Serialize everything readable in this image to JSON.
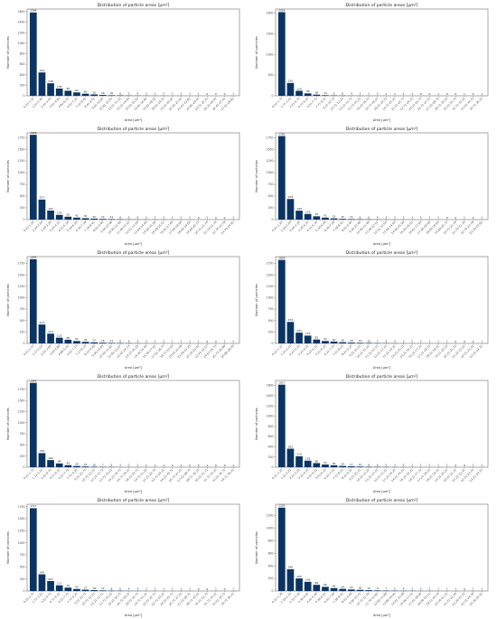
{
  "colors": {
    "bar": "#0b3463",
    "frame": "#555555",
    "text": "#222222"
  },
  "chart_data": [
    {
      "type": "bar",
      "title": "Distribution of particle areas [μm²]",
      "xlabel": "Area [μm²]",
      "ylabel": "Number of particles",
      "ylim": [
        0,
        1650
      ],
      "yticks": [
        0,
        200,
        400,
        600,
        800,
        1000,
        1200,
        1400,
        1600
      ],
      "categories": [
        "0.21-1.21",
        "1.21-2.41",
        "2.41-3.61",
        "3.61-4.81",
        "4.81-6.01",
        "6.01-7.21",
        "7.21-8.41",
        "8.41-9.61",
        "9.61-10.81",
        "10.81-12.01",
        "12.01-13.21",
        "13.21-14.41",
        "14.41-15.61",
        "15.61-16.81",
        "16.81-18.01",
        "18.01-19.21",
        "19.21-20.41",
        "20.41-21.61",
        "21.61-22.81",
        "22.81-24.01",
        "24.01-25.21",
        "25.21-26.41",
        "26.41-27.61",
        "27.61-28.81"
      ],
      "values": [
        1584,
        444,
        238,
        138,
        96,
        64,
        40,
        26,
        16,
        10,
        8,
        5,
        4,
        3,
        2,
        2,
        1,
        1,
        1,
        1,
        0,
        0,
        0,
        1
      ],
      "data_labels": [
        "1584",
        "444",
        "238",
        "138",
        "96",
        "64",
        "40",
        "26",
        "16",
        "10",
        "8",
        "5",
        "4",
        "3",
        "2",
        "2",
        "1",
        "1",
        "1",
        "1",
        "0",
        "0",
        "0",
        "1"
      ]
    },
    {
      "type": "bar",
      "title": "Distribution of particle areas [μm²]",
      "xlabel": "Area [μm²]",
      "ylabel": "Number of particles",
      "ylim": [
        0,
        2100
      ],
      "yticks": [
        0,
        500,
        1000,
        1500,
        2000
      ],
      "categories": [
        "0.21-1.71",
        "1.71-3.21",
        "3.21-4.71",
        "4.71-6.21",
        "6.21-7.71",
        "7.71-9.21",
        "9.21-10.71",
        "10.71-12.21",
        "12.21-13.71",
        "13.71-15.21",
        "15.21-16.71",
        "16.71-18.21",
        "18.21-19.71",
        "19.71-21.21",
        "21.21-22.71",
        "22.71-24.21",
        "24.21-25.71",
        "25.71-27.21",
        "27.21-28.71",
        "28.71-30.21",
        "30.21-31.71",
        "31.71-33.21",
        "33.21-34.71",
        "34.71-36.21"
      ],
      "values": [
        2024,
        310,
        120,
        58,
        28,
        14,
        9,
        6,
        4,
        3,
        2,
        2,
        1,
        1,
        1,
        1,
        0,
        0,
        1,
        0,
        0,
        1,
        0,
        1
      ],
      "data_labels": [
        "2024",
        "310",
        "120",
        "58",
        "28",
        "14",
        "9",
        "6",
        "4",
        "3",
        "2",
        "2",
        "1",
        "1",
        "1",
        "1",
        "0",
        "0",
        "1",
        "0",
        "0",
        "1",
        "0",
        "1"
      ]
    },
    {
      "type": "bar",
      "title": "Distribution of particle areas [μm²]",
      "xlabel": "Area [μm²]",
      "ylabel": "Number of particles",
      "ylim": [
        0,
        1850
      ],
      "yticks": [
        0,
        250,
        500,
        750,
        1000,
        1250,
        1500,
        1750
      ],
      "categories": [
        "0.21-1.24",
        "1.24-2.26",
        "2.26-3.29",
        "3.29-4.31",
        "4.31-5.34",
        "5.34-6.36",
        "6.36-7.39",
        "7.39-8.41",
        "8.41-9.44",
        "9.44-10.46",
        "10.46-11.49",
        "11.49-12.51",
        "12.51-13.54",
        "13.54-14.56",
        "14.56-15.59",
        "15.59-16.61",
        "16.61-17.64",
        "17.64-18.66",
        "18.66-19.69",
        "19.69-20.71",
        "20.71-21.74",
        "21.74-22.76",
        "22.76-23.79",
        "23.79-24.81"
      ],
      "values": [
        1808,
        427,
        192,
        100,
        62,
        42,
        30,
        20,
        14,
        11,
        8,
        5,
        4,
        3,
        2,
        2,
        1,
        1,
        1,
        0,
        1,
        0,
        0,
        1
      ],
      "data_labels": [
        "1808",
        "427",
        "192",
        "100",
        "62",
        "42",
        "30",
        "20",
        "14",
        "11",
        "8",
        "5",
        "4",
        "3",
        "2",
        "2",
        "1",
        "1",
        "1",
        "0",
        "1",
        "0",
        "0",
        "1"
      ]
    },
    {
      "type": "bar",
      "title": "Distribution of particle areas [μm²]",
      "xlabel": "Area [μm²]",
      "ylabel": "Number of particles",
      "ylim": [
        0,
        1850
      ],
      "yticks": [
        0,
        250,
        500,
        750,
        1000,
        1250,
        1500,
        1750
      ],
      "categories": [
        "0.21-1.24",
        "1.24-2.26",
        "2.26-3.29",
        "3.29-4.31",
        "4.31-5.34",
        "5.34-6.36",
        "6.36-7.39",
        "7.39-8.41",
        "8.41-9.44",
        "9.44-10.46",
        "10.46-11.49",
        "11.49-12.51",
        "12.51-13.54",
        "13.54-14.56",
        "14.56-15.59",
        "15.59-16.61",
        "16.61-17.64",
        "17.64-18.66",
        "18.66-19.69",
        "19.69-20.71",
        "20.71-21.74",
        "21.74-22.76",
        "22.76-23.79",
        "23.79-24.81"
      ],
      "values": [
        1781,
        439,
        190,
        120,
        70,
        42,
        25,
        15,
        11,
        8,
        6,
        4,
        3,
        2,
        2,
        1,
        1,
        1,
        1,
        0,
        0,
        1,
        0,
        1
      ],
      "data_labels": [
        "1781",
        "439",
        "190",
        "120",
        "70",
        "42",
        "25",
        "15",
        "11",
        "8",
        "6",
        "4",
        "3",
        "2",
        "2",
        "1",
        "1",
        "1",
        "1",
        "0",
        "0",
        "1",
        "0",
        "1"
      ]
    },
    {
      "type": "bar",
      "title": "Distribution of particle areas [μm²]",
      "xlabel": "Area [μm²]",
      "ylabel": "Number of particles",
      "ylim": [
        0,
        1900
      ],
      "yticks": [
        0,
        250,
        500,
        750,
        1000,
        1250,
        1500,
        1750
      ],
      "categories": [
        "0.21-1.37",
        "1.37-2.53",
        "2.53-3.69",
        "3.69-4.85",
        "4.85-6.01",
        "6.01-7.17",
        "7.17-8.33",
        "8.33-9.49",
        "9.49-10.65",
        "10.65-11.81",
        "11.81-12.97",
        "12.97-14.13",
        "14.13-15.29",
        "15.29-16.45",
        "16.45-17.61",
        "17.61-18.77",
        "18.77-19.93",
        "19.93-21.09",
        "21.09-22.25",
        "22.25-23.41",
        "23.41-24.57",
        "24.57-25.73",
        "25.73-26.89",
        "26.89-28.05"
      ],
      "values": [
        1844,
        413,
        213,
        125,
        80,
        52,
        34,
        22,
        16,
        11,
        8,
        6,
        4,
        3,
        2,
        2,
        1,
        1,
        1,
        1,
        0,
        0,
        1,
        1
      ],
      "data_labels": [
        "1844",
        "413",
        "213",
        "125",
        "80",
        "52",
        "34",
        "22",
        "16",
        "11",
        "8",
        "6",
        "4",
        "3",
        "2",
        "2",
        "1",
        "1",
        "1",
        "1",
        "0",
        "0",
        "1",
        "1"
      ]
    },
    {
      "type": "bar",
      "title": "Distribution of particle areas [μm²]",
      "xlabel": "Area [μm²]",
      "ylabel": "Number of particles",
      "ylim": [
        0,
        1900
      ],
      "yticks": [
        0,
        250,
        500,
        750,
        1000,
        1250,
        1500,
        1750
      ],
      "categories": [
        "0.21-1.21",
        "1.21-2.21",
        "2.21-3.21",
        "3.21-4.21",
        "4.21-5.21",
        "5.21-6.21",
        "6.21-7.21",
        "7.21-8.21",
        "8.21-9.21",
        "9.21-10.21",
        "10.21-11.21",
        "11.21-12.21",
        "12.21-13.21",
        "13.21-14.21",
        "14.21-15.21",
        "15.21-16.21",
        "16.21-17.21",
        "17.21-18.21",
        "18.21-19.21",
        "19.21-20.21",
        "20.21-21.21",
        "21.21-22.21",
        "22.21-23.21",
        "23.21-24.21"
      ],
      "values": [
        1828,
        470,
        235,
        170,
        85,
        52,
        40,
        26,
        18,
        13,
        10,
        7,
        5,
        4,
        3,
        2,
        2,
        1,
        1,
        1,
        0,
        0,
        0,
        1
      ],
      "data_labels": [
        "1828",
        "470",
        "235",
        "170",
        "85",
        "52",
        "40",
        "26",
        "18",
        "13",
        "10",
        "7",
        "5",
        "4",
        "3",
        "2",
        "2",
        "1",
        "1",
        "1",
        "0",
        "0",
        "0",
        "1"
      ]
    },
    {
      "type": "bar",
      "title": "Distribution of particle areas [μm²]",
      "xlabel": "Area [μm²]",
      "ylabel": "Number of particles",
      "ylim": [
        0,
        1950
      ],
      "yticks": [
        0,
        250,
        500,
        750,
        1000,
        1250,
        1500,
        1750
      ],
      "categories": [
        "0.21-1.71",
        "1.71-3.21",
        "3.21-4.71",
        "4.71-6.21",
        "6.21-7.71",
        "7.71-9.21",
        "9.21-10.71",
        "10.71-12.21",
        "12.21-13.71",
        "13.71-15.21",
        "15.21-16.71",
        "16.71-18.21",
        "18.21-19.71",
        "19.71-21.21",
        "21.21-22.71",
        "22.71-24.21",
        "24.21-25.71",
        "25.71-27.21",
        "27.21-28.71",
        "28.71-30.21",
        "30.21-31.71",
        "31.71-33.21",
        "33.21-34.71",
        "34.71-36.21"
      ],
      "values": [
        1895,
        316,
        160,
        84,
        45,
        26,
        16,
        10,
        7,
        5,
        3,
        2,
        2,
        1,
        1,
        1,
        0,
        1,
        0,
        0,
        1,
        0,
        0,
        1
      ],
      "data_labels": [
        "1895",
        "316",
        "160",
        "84",
        "45",
        "26",
        "16",
        "10",
        "7",
        "5",
        "3",
        "2",
        "2",
        "1",
        "1",
        "1",
        "0",
        "1",
        "0",
        "0",
        "1",
        "0",
        "0",
        "1"
      ]
    },
    {
      "type": "bar",
      "title": "Distribution of particle areas [μm²]",
      "xlabel": "Area [μm²]",
      "ylabel": "Number of particles",
      "ylim": [
        0,
        1700
      ],
      "yticks": [
        0,
        200,
        400,
        600,
        800,
        1000,
        1200,
        1400,
        1600
      ],
      "categories": [
        "0.21-1.21",
        "1.21-2.21",
        "2.21-3.21",
        "3.21-4.21",
        "4.21-5.21",
        "5.21-6.21",
        "6.21-7.21",
        "7.21-8.21",
        "8.21-9.21",
        "9.21-10.21",
        "10.21-11.21",
        "11.21-12.21",
        "12.21-13.21",
        "13.21-14.21",
        "14.21-15.21",
        "15.21-16.21",
        "16.21-17.21",
        "17.21-18.21",
        "18.21-19.21",
        "19.21-20.21",
        "20.21-21.21",
        "21.21-22.21",
        "22.21-23.21",
        "23.21-24.21"
      ],
      "values": [
        1617,
        362,
        214,
        128,
        80,
        52,
        36,
        24,
        17,
        12,
        8,
        6,
        5,
        3,
        2,
        2,
        1,
        1,
        1,
        1,
        0,
        0,
        1,
        1
      ],
      "data_labels": [
        "1617",
        "362",
        "214",
        "128",
        "80",
        "52",
        "36",
        "24",
        "17",
        "12",
        "8",
        "6",
        "5",
        "3",
        "2",
        "2",
        "1",
        "1",
        "1",
        "1",
        "0",
        "0",
        "1",
        "1"
      ]
    },
    {
      "type": "bar",
      "title": "Distribution of particle areas [μm²]",
      "xlabel": "Area [μm²]",
      "ylabel": "Number of particles",
      "ylim": [
        0,
        1800
      ],
      "yticks": [
        0,
        250,
        500,
        750,
        1000,
        1250,
        1500,
        1750
      ],
      "categories": [
        "0.21-1.71",
        "1.71-3.21",
        "3.21-4.71",
        "4.71-6.21",
        "6.21-7.71",
        "7.71-9.21",
        "9.21-10.71",
        "10.71-12.21",
        "12.21-13.71",
        "13.71-15.21",
        "15.21-16.71",
        "16.71-18.21",
        "18.21-19.71",
        "19.71-21.21",
        "21.21-22.71",
        "22.71-24.21",
        "24.21-25.71",
        "25.71-27.21",
        "27.21-28.71",
        "28.71-30.21",
        "30.21-31.71",
        "31.71-33.21",
        "33.21-34.71",
        "34.71-36.21"
      ],
      "values": [
        1717,
        345,
        207,
        117,
        70,
        42,
        27,
        18,
        12,
        8,
        6,
        4,
        3,
        2,
        2,
        1,
        1,
        1,
        1,
        0,
        0,
        1,
        0,
        1
      ],
      "data_labels": [
        "1717",
        "345",
        "207",
        "117",
        "70",
        "42",
        "27",
        "18",
        "12",
        "8",
        "6",
        "4",
        "3",
        "2",
        "2",
        "1",
        "1",
        "1",
        "1",
        "0",
        "0",
        "1",
        "0",
        "1"
      ]
    },
    {
      "type": "bar",
      "title": "Distribution of particle areas [μm²]",
      "xlabel": "Area [μm²]",
      "ylabel": "Number of particles",
      "ylim": [
        0,
        1380
      ],
      "yticks": [
        0,
        200,
        400,
        600,
        800,
        1000,
        1200
      ],
      "categories": [
        "0.21-1.26",
        "1.26-2.31",
        "2.31-3.36",
        "3.36-4.41",
        "4.41-5.46",
        "5.46-6.51",
        "6.51-7.56",
        "7.56-8.61",
        "8.61-9.66",
        "9.66-10.71",
        "10.71-11.76",
        "11.76-12.81",
        "12.81-13.86",
        "13.86-14.91",
        "14.91-15.96",
        "15.96-17.01",
        "17.01-18.06",
        "18.06-19.11",
        "19.11-20.16",
        "20.16-21.21",
        "21.21-22.26",
        "22.26-23.31",
        "23.31-24.36",
        "24.36-25.41"
      ],
      "values": [
        1326,
        346,
        200,
        146,
        98,
        66,
        46,
        34,
        24,
        18,
        13,
        9,
        7,
        5,
        4,
        3,
        2,
        2,
        1,
        1,
        1,
        0,
        1,
        1
      ],
      "data_labels": [
        "1326",
        "346",
        "200",
        "146",
        "98",
        "66",
        "46",
        "34",
        "24",
        "18",
        "13",
        "9",
        "7",
        "5",
        "4",
        "3",
        "2",
        "2",
        "1",
        "1",
        "1",
        "0",
        "1",
        "1"
      ]
    }
  ]
}
